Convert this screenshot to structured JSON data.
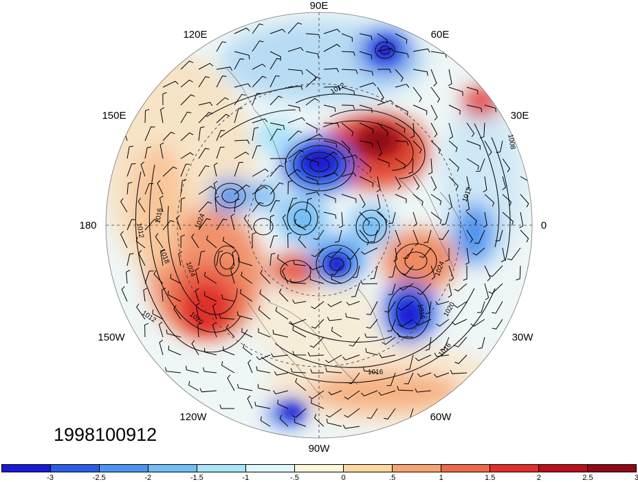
{
  "lon_labels": {
    "e90": "90E",
    "e60": "60E",
    "e30": "30E",
    "zero": "0",
    "w30": "30W",
    "w60": "60W",
    "w90": "90W",
    "w120": "120W",
    "w150": "150W",
    "d180": "180",
    "e150": "150E",
    "e120": "120E"
  },
  "date_stamp": "1998100912",
  "colorbar": {
    "colors": [
      "#1a1ad4",
      "#2a5fe3",
      "#4b95f0",
      "#73bdf5",
      "#a9e4fa",
      "#def6fc",
      "#fdf6d8",
      "#fbd9a0",
      "#f6a572",
      "#ed6a4a",
      "#e0302c",
      "#b8121b",
      "#8e0a14"
    ],
    "labels": [
      "-3",
      "-2.5",
      "-2",
      "-1.5",
      "-1",
      "-.5",
      "0",
      ".5",
      "1",
      "1.5",
      "2",
      "2.5",
      "3"
    ]
  },
  "contour_labels": {
    "c1012a": "1012",
    "c1016a": "1016",
    "c1024a": "1024",
    "c1018": "1018",
    "c1024b": "1024",
    "c1012b": "1012",
    "c1020a": "1020",
    "c1024c": "1024",
    "c1016b": "1016",
    "c1020b": "1020",
    "c1016c": "1016",
    "c1016d": "1016",
    "c1008": "1008",
    "c1012c": "1012",
    "c1012d": "1012"
  }
}
